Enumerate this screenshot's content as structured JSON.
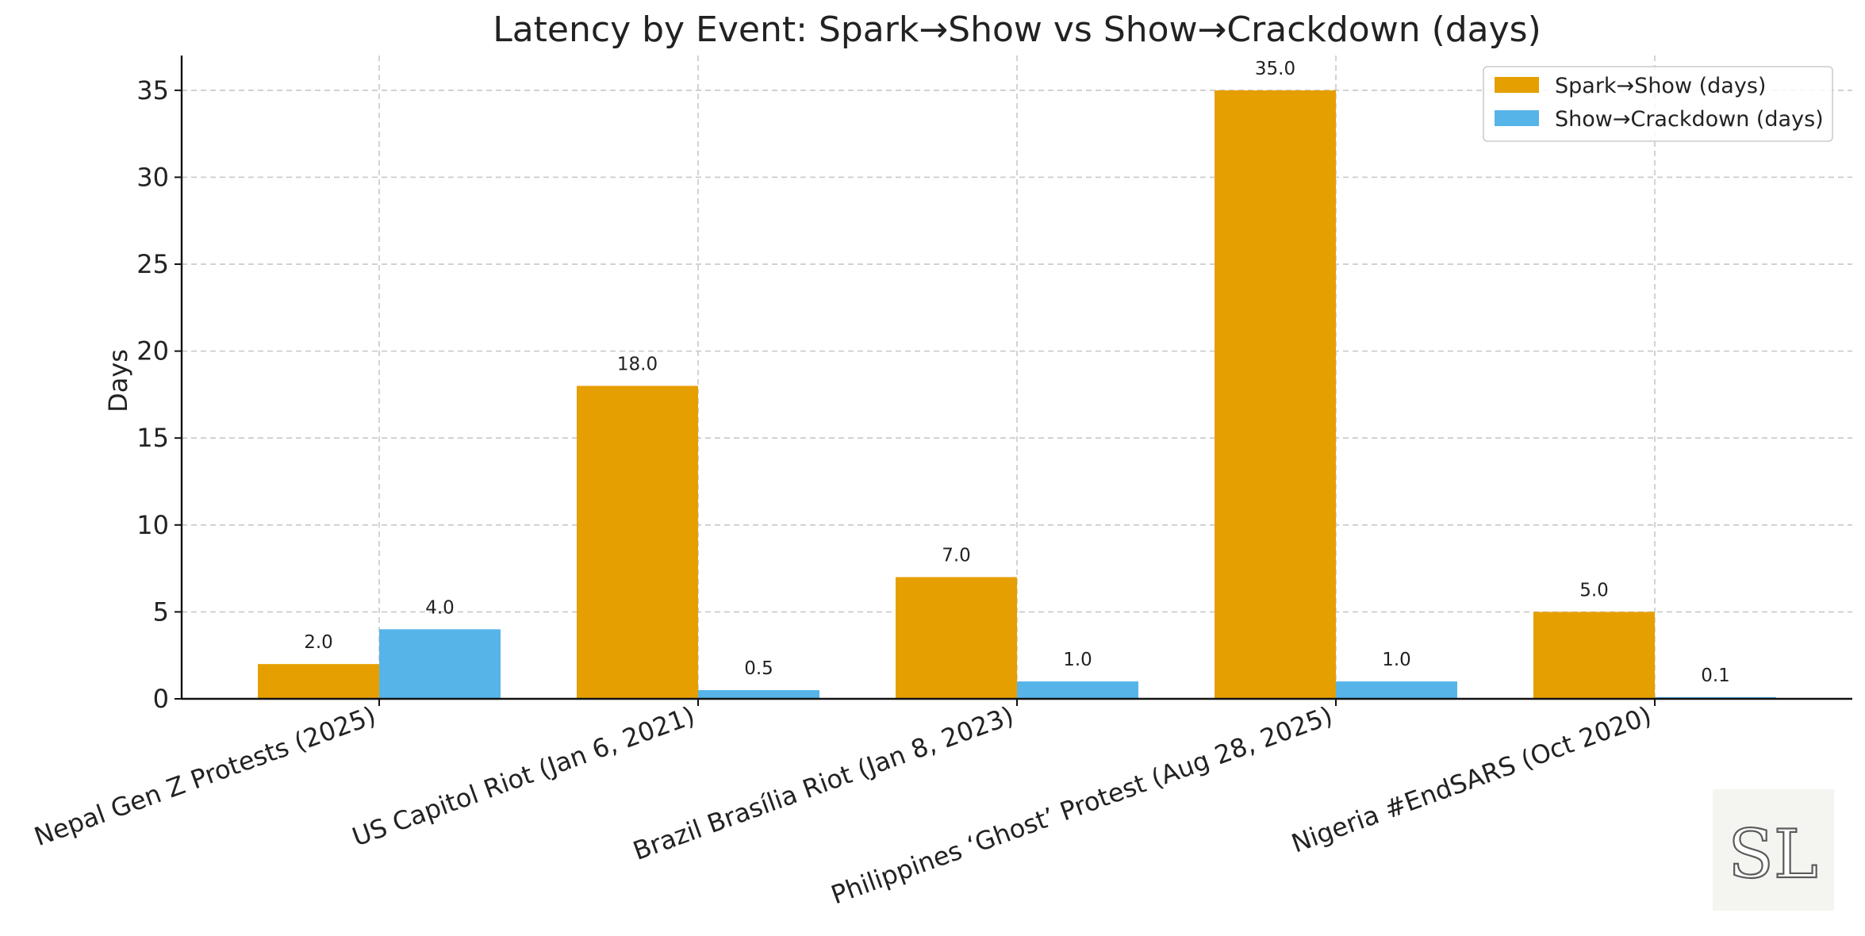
{
  "chart_data": {
    "type": "bar",
    "title": "Latency by Event: Spark→Show vs Show→Crackdown (days)",
    "xlabel": "",
    "ylabel": "Days",
    "ylim": [
      0,
      37
    ],
    "yticks": [
      0,
      5,
      10,
      15,
      20,
      25,
      30,
      35
    ],
    "grid": true,
    "legend_position": "top-right",
    "categories": [
      "Nepal Gen Z Protests (2025)",
      "US Capitol Riot (Jan 6, 2021)",
      "Brazil Brasília Riot (Jan 8, 2023)",
      "Philippines ‘Ghost’ Protest (Aug 28, 2025)",
      "Nigeria #EndSARS (Oct 2020)"
    ],
    "series": [
      {
        "name": "Spark→Show (days)",
        "color": "#E69F00",
        "values": [
          2.0,
          18.0,
          7.0,
          35.0,
          5.0
        ],
        "labels": [
          "2.0",
          "18.0",
          "7.0",
          "35.0",
          "5.0"
        ]
      },
      {
        "name": "Show→Crackdown (days)",
        "color": "#56B4E9",
        "values": [
          4.0,
          0.5,
          1.0,
          1.0,
          0.1
        ],
        "labels": [
          "4.0",
          "0.5",
          "1.0",
          "1.0",
          "0.1"
        ]
      }
    ]
  },
  "logo": {
    "text": "SL"
  }
}
